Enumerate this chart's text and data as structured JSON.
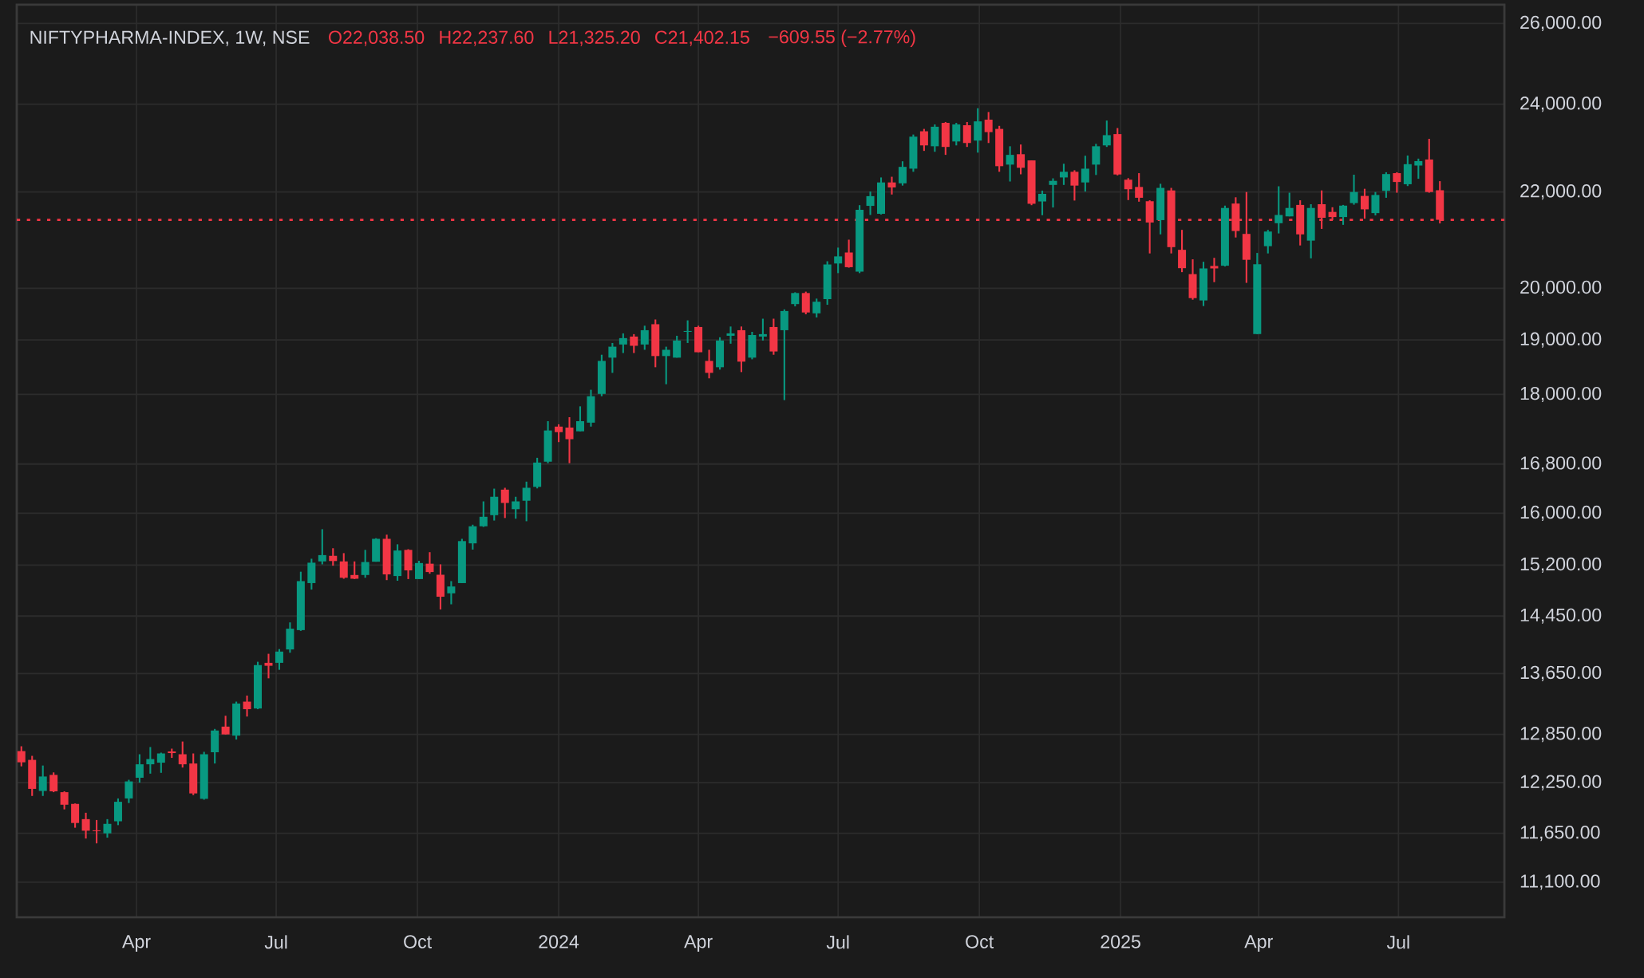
{
  "chart_data": {
    "type": "candlestick",
    "title": "NIFTYPHARMA-INDEX, 1W, NSE",
    "annotations": [
      "O22,038.50",
      "H22,237.60",
      "L21,325.20",
      "C21,402.15",
      "−609.55 (−2.77%)"
    ],
    "x": [
      "2023-01-16",
      "2023-01-23",
      "2023-01-30",
      "2023-02-06",
      "2023-02-13",
      "2023-02-20",
      "2023-02-27",
      "2023-03-06",
      "2023-03-13",
      "2023-03-20",
      "2023-03-27",
      "2023-04-03",
      "2023-04-10",
      "2023-04-17",
      "2023-04-24",
      "2023-05-01",
      "2023-05-08",
      "2023-05-15",
      "2023-05-22",
      "2023-05-29",
      "2023-06-05",
      "2023-06-12",
      "2023-06-19",
      "2023-06-26",
      "2023-07-03",
      "2023-07-10",
      "2023-07-17",
      "2023-07-24",
      "2023-07-31",
      "2023-08-07",
      "2023-08-14",
      "2023-08-21",
      "2023-08-28",
      "2023-09-04",
      "2023-09-11",
      "2023-09-18",
      "2023-09-25",
      "2023-10-02",
      "2023-10-09",
      "2023-10-16",
      "2023-10-23",
      "2023-10-30",
      "2023-11-06",
      "2023-11-13",
      "2023-11-20",
      "2023-11-27",
      "2023-12-04",
      "2023-12-11",
      "2023-12-18",
      "2023-12-25",
      "2024-01-01",
      "2024-01-08",
      "2024-01-15",
      "2024-01-22",
      "2024-01-29",
      "2024-02-05",
      "2024-02-12",
      "2024-02-19",
      "2024-02-26",
      "2024-03-04",
      "2024-03-11",
      "2024-03-18",
      "2024-03-25",
      "2024-04-01",
      "2024-04-08",
      "2024-04-15",
      "2024-04-22",
      "2024-04-29",
      "2024-05-06",
      "2024-05-13",
      "2024-05-20",
      "2024-05-27",
      "2024-06-03",
      "2024-06-10",
      "2024-06-17",
      "2024-06-24",
      "2024-07-01",
      "2024-07-08",
      "2024-07-15",
      "2024-07-22",
      "2024-07-29",
      "2024-08-05",
      "2024-08-12",
      "2024-08-19",
      "2024-08-26",
      "2024-09-02",
      "2024-09-09",
      "2024-09-16",
      "2024-09-23",
      "2024-09-30",
      "2024-10-07",
      "2024-10-14",
      "2024-10-21",
      "2024-10-28",
      "2024-11-04",
      "2024-11-11",
      "2024-11-18",
      "2024-11-25",
      "2024-12-02",
      "2024-12-09",
      "2024-12-16",
      "2024-12-23",
      "2024-12-30",
      "2025-01-06",
      "2025-01-13",
      "2025-01-20",
      "2025-01-27",
      "2025-02-03",
      "2025-02-10",
      "2025-02-17",
      "2025-02-24",
      "2025-03-03",
      "2025-03-10",
      "2025-03-17",
      "2025-03-24",
      "2025-03-31",
      "2025-04-07",
      "2025-04-14",
      "2025-04-21",
      "2025-04-28",
      "2025-05-05",
      "2025-05-12",
      "2025-05-19",
      "2025-05-26",
      "2025-06-02",
      "2025-06-09",
      "2025-06-16",
      "2025-06-23",
      "2025-06-30",
      "2025-07-07",
      "2025-07-14",
      "2025-07-21",
      "2025-07-28"
    ],
    "ohlc": [
      [
        12640,
        12700,
        12450,
        12500
      ],
      [
        12530,
        12580,
        12090,
        12175
      ],
      [
        12150,
        12460,
        12090,
        12325
      ],
      [
        12345,
        12375,
        12135,
        12145
      ],
      [
        12135,
        12145,
        11930,
        11985
      ],
      [
        11995,
        12000,
        11715,
        11770
      ],
      [
        11815,
        11890,
        11590,
        11680
      ],
      [
        11685,
        11805,
        11535,
        11675
      ],
      [
        11650,
        11815,
        11600,
        11760
      ],
      [
        11790,
        12060,
        11745,
        12020
      ],
      [
        12060,
        12285,
        12005,
        12265
      ],
      [
        12310,
        12600,
        12250,
        12475
      ],
      [
        12475,
        12690,
        12360,
        12540
      ],
      [
        12495,
        12620,
        12370,
        12610
      ],
      [
        12635,
        12670,
        12555,
        12615
      ],
      [
        12600,
        12760,
        12435,
        12475
      ],
      [
        12485,
        12610,
        12100,
        12120
      ],
      [
        12055,
        12630,
        12045,
        12600
      ],
      [
        12625,
        12920,
        12485,
        12900
      ],
      [
        12950,
        13090,
        12850,
        12850
      ],
      [
        12835,
        13275,
        12785,
        13250
      ],
      [
        13275,
        13355,
        13080,
        13175
      ],
      [
        13185,
        13810,
        13175,
        13765
      ],
      [
        13795,
        13920,
        13585,
        13755
      ],
      [
        13795,
        13985,
        13700,
        13950
      ],
      [
        13980,
        14360,
        13935,
        14270
      ],
      [
        14250,
        15100,
        14240,
        14960
      ],
      [
        14930,
        15295,
        14835,
        15235
      ],
      [
        15255,
        15750,
        15210,
        15350
      ],
      [
        15340,
        15455,
        15190,
        15260
      ],
      [
        15255,
        15380,
        14995,
        15010
      ],
      [
        15050,
        15255,
        14990,
        14995
      ],
      [
        15050,
        15430,
        15010,
        15245
      ],
      [
        15250,
        15610,
        15250,
        15600
      ],
      [
        15600,
        15665,
        14975,
        15060
      ],
      [
        15035,
        15515,
        14965,
        15420
      ],
      [
        15430,
        15440,
        14990,
        15120
      ],
      [
        14990,
        15265,
        14990,
        15230
      ],
      [
        15220,
        15395,
        15070,
        15095
      ],
      [
        15055,
        15210,
        14545,
        14730
      ],
      [
        14780,
        14960,
        14620,
        14880
      ],
      [
        14930,
        15600,
        14930,
        15565
      ],
      [
        15530,
        15820,
        15435,
        15795
      ],
      [
        15795,
        16190,
        15785,
        15945
      ],
      [
        15970,
        16395,
        15885,
        16265
      ],
      [
        16380,
        16410,
        15925,
        16165
      ],
      [
        16065,
        16265,
        15915,
        16190
      ],
      [
        16200,
        16510,
        15875,
        16410
      ],
      [
        16425,
        16905,
        16400,
        16825
      ],
      [
        16840,
        17530,
        16815,
        17370
      ],
      [
        17435,
        17475,
        17170,
        17340
      ],
      [
        17420,
        17600,
        16815,
        17220
      ],
      [
        17355,
        17790,
        17355,
        17530
      ],
      [
        17505,
        18085,
        17435,
        17970
      ],
      [
        18010,
        18725,
        17970,
        18610
      ],
      [
        18670,
        18945,
        18390,
        18875
      ],
      [
        18915,
        19125,
        18755,
        19035
      ],
      [
        19065,
        19110,
        18755,
        18890
      ],
      [
        18915,
        19270,
        18815,
        19185
      ],
      [
        19300,
        19390,
        18495,
        18700
      ],
      [
        18700,
        18875,
        18185,
        18815
      ],
      [
        18670,
        19080,
        18670,
        18990
      ],
      [
        19155,
        19375,
        18945,
        19170
      ],
      [
        19245,
        19270,
        18770,
        18770
      ],
      [
        18610,
        18815,
        18290,
        18390
      ],
      [
        18495,
        19050,
        18450,
        18990
      ],
      [
        19080,
        19255,
        18930,
        19125
      ],
      [
        19185,
        19255,
        18405,
        18595
      ],
      [
        18670,
        19155,
        18640,
        19095
      ],
      [
        19065,
        19405,
        18990,
        19110
      ],
      [
        19245,
        19405,
        18725,
        18785
      ],
      [
        19185,
        19585,
        17900,
        19555
      ],
      [
        19690,
        19920,
        19645,
        19905
      ],
      [
        19905,
        19935,
        19490,
        19525
      ],
      [
        19510,
        19795,
        19430,
        19735
      ],
      [
        19785,
        20540,
        19675,
        20475
      ],
      [
        20495,
        20820,
        20300,
        20640
      ],
      [
        20720,
        20985,
        20410,
        20420
      ],
      [
        20330,
        21715,
        20300,
        21615
      ],
      [
        21700,
        22010,
        21505,
        21910
      ],
      [
        21530,
        22320,
        21515,
        22210
      ],
      [
        22210,
        22335,
        21945,
        22100
      ],
      [
        22190,
        22680,
        22140,
        22555
      ],
      [
        22515,
        23290,
        22445,
        23240
      ],
      [
        23365,
        23420,
        22915,
        23040
      ],
      [
        23020,
        23525,
        22895,
        23470
      ],
      [
        23560,
        23580,
        22825,
        23005
      ],
      [
        23130,
        23560,
        23040,
        23525
      ],
      [
        23505,
        23580,
        23005,
        23095
      ],
      [
        23150,
        23905,
        22875,
        23595
      ],
      [
        23635,
        23815,
        23095,
        23345
      ],
      [
        23420,
        23490,
        22445,
        22570
      ],
      [
        22605,
        23020,
        22230,
        22825
      ],
      [
        22840,
        23060,
        22390,
        22535
      ],
      [
        22700,
        22700,
        21715,
        21745
      ],
      [
        21795,
        22030,
        21500,
        21960
      ],
      [
        22155,
        22300,
        21665,
        22245
      ],
      [
        22320,
        22625,
        22155,
        22445
      ],
      [
        22445,
        22480,
        21815,
        22140
      ],
      [
        22210,
        22805,
        22010,
        22515
      ],
      [
        22605,
        23075,
        22375,
        23020
      ],
      [
        23040,
        23615,
        23005,
        23275
      ],
      [
        23300,
        23440,
        22365,
        22385
      ],
      [
        22270,
        22305,
        21825,
        22060
      ],
      [
        22110,
        22415,
        21790,
        21875
      ],
      [
        21800,
        21820,
        20700,
        21345
      ],
      [
        21395,
        22180,
        21095,
        22090
      ],
      [
        22035,
        22090,
        20700,
        20830
      ],
      [
        20775,
        21190,
        20320,
        20400
      ],
      [
        20280,
        20580,
        19775,
        19805
      ],
      [
        19760,
        20530,
        19650,
        20395
      ],
      [
        20445,
        20610,
        20120,
        20395
      ],
      [
        20450,
        21705,
        20435,
        21655
      ],
      [
        21750,
        21885,
        21030,
        21165
      ],
      [
        21105,
        22000,
        20105,
        20570
      ],
      [
        19110,
        20710,
        19110,
        20480
      ],
      [
        20850,
        21190,
        20700,
        21155
      ],
      [
        21330,
        22125,
        21115,
        21505
      ],
      [
        21475,
        21985,
        21475,
        21655
      ],
      [
        21720,
        21820,
        20865,
        21095
      ],
      [
        20965,
        21735,
        20600,
        21655
      ],
      [
        21735,
        22035,
        21210,
        21445
      ],
      [
        21570,
        21670,
        21395,
        21460
      ],
      [
        21460,
        21720,
        21295,
        21705
      ],
      [
        21760,
        22380,
        21725,
        22000
      ],
      [
        21915,
        22070,
        21425,
        21625
      ],
      [
        21545,
        22000,
        21495,
        21935
      ],
      [
        22025,
        22435,
        21875,
        22395
      ],
      [
        22415,
        22435,
        21985,
        22220
      ],
      [
        22170,
        22810,
        22130,
        22615
      ],
      [
        22585,
        22740,
        22290,
        22685
      ],
      [
        22720,
        23190,
        21985,
        22000
      ],
      [
        22038.5,
        22237.6,
        21325.2,
        21402.15
      ]
    ],
    "colors": [
      "#f23645",
      "#f23645",
      "#089981",
      "#f23645",
      "#f23645",
      "#f23645",
      "#f23645",
      "#f23645",
      "#089981",
      "#089981",
      "#089981",
      "#089981",
      "#089981",
      "#089981",
      "#f23645",
      "#f23645",
      "#f23645",
      "#089981",
      "#089981",
      "#f23645",
      "#089981",
      "#f23645",
      "#089981",
      "#f23645",
      "#089981",
      "#089981",
      "#089981",
      "#089981",
      "#089981",
      "#f23645",
      "#f23645",
      "#f23645",
      "#089981",
      "#089981",
      "#f23645",
      "#089981",
      "#f23645",
      "#089981",
      "#f23645",
      "#f23645",
      "#089981",
      "#089981",
      "#089981",
      "#089981",
      "#089981",
      "#f23645",
      "#089981",
      "#089981",
      "#089981",
      "#089981",
      "#f23645",
      "#f23645",
      "#089981",
      "#089981",
      "#089981",
      "#089981",
      "#089981",
      "#f23645",
      "#089981",
      "#f23645",
      "#089981",
      "#089981",
      "#089981",
      "#f23645",
      "#f23645",
      "#089981",
      "#089981",
      "#f23645",
      "#089981",
      "#089981",
      "#f23645",
      "#089981",
      "#089981",
      "#f23645",
      "#089981",
      "#089981",
      "#089981",
      "#f23645",
      "#089981",
      "#089981",
      "#089981",
      "#f23645",
      "#089981",
      "#089981",
      "#f23645",
      "#089981",
      "#f23645",
      "#089981",
      "#f23645",
      "#089981",
      "#f23645",
      "#f23645",
      "#089981",
      "#f23645",
      "#f23645",
      "#089981",
      "#089981",
      "#089981",
      "#f23645",
      "#089981",
      "#089981",
      "#089981",
      "#f23645",
      "#f23645",
      "#f23645",
      "#f23645",
      "#089981",
      "#f23645",
      "#f23645",
      "#f23645",
      "#089981",
      "#f23645",
      "#089981",
      "#f23645",
      "#f23645",
      "#089981",
      "#089981",
      "#089981",
      "#089981",
      "#f23645",
      "#089981",
      "#f23645",
      "#f23645",
      "#089981",
      "#089981",
      "#f23645",
      "#089981",
      "#089981",
      "#f23645",
      "#089981",
      "#089981",
      "#f23645",
      "#f23645"
    ],
    "xlim": [
      "2023-01-13",
      "2025-09-08"
    ],
    "xticks": [
      {
        "value": "2023-04-01",
        "label": "Apr"
      },
      {
        "value": "2023-07-01",
        "label": "Jul"
      },
      {
        "value": "2023-10-01",
        "label": "Oct"
      },
      {
        "value": "2024-01-01",
        "label": "2024"
      },
      {
        "value": "2024-04-01",
        "label": "Apr"
      },
      {
        "value": "2024-07-01",
        "label": "Jul"
      },
      {
        "value": "2024-10-01",
        "label": "Oct"
      },
      {
        "value": "2025-01-01",
        "label": "2025"
      },
      {
        "value": "2025-04-01",
        "label": "Apr"
      },
      {
        "value": "2025-07-01",
        "label": "Jul"
      }
    ],
    "ylim": [
      10720,
      26490
    ],
    "yticks": [
      {
        "value": 11100,
        "label": "11,100.00"
      },
      {
        "value": 11650,
        "label": "11,650.00"
      },
      {
        "value": 12250,
        "label": "12,250.00"
      },
      {
        "value": 12850,
        "label": "12,850.00"
      },
      {
        "value": 13650,
        "label": "13,650.00"
      },
      {
        "value": 14450,
        "label": "14,450.00"
      },
      {
        "value": 15200,
        "label": "15,200.00"
      },
      {
        "value": 16000,
        "label": "16,000.00"
      },
      {
        "value": 16800,
        "label": "16,800.00"
      },
      {
        "value": 18000,
        "label": "18,000.00"
      },
      {
        "value": 19000,
        "label": "19,000.00"
      },
      {
        "value": 20000,
        "label": "20,000.00"
      },
      {
        "value": 22000,
        "label": "22,000.00"
      },
      {
        "value": 24000,
        "label": "24,000.00"
      },
      {
        "value": 26000,
        "label": "26,000.00"
      }
    ],
    "log": "y",
    "grid": true,
    "ref_lines": [
      {
        "axis": "y",
        "value": 21402.15,
        "color": "#f23645",
        "line_style": "dotted"
      }
    ]
  }
}
